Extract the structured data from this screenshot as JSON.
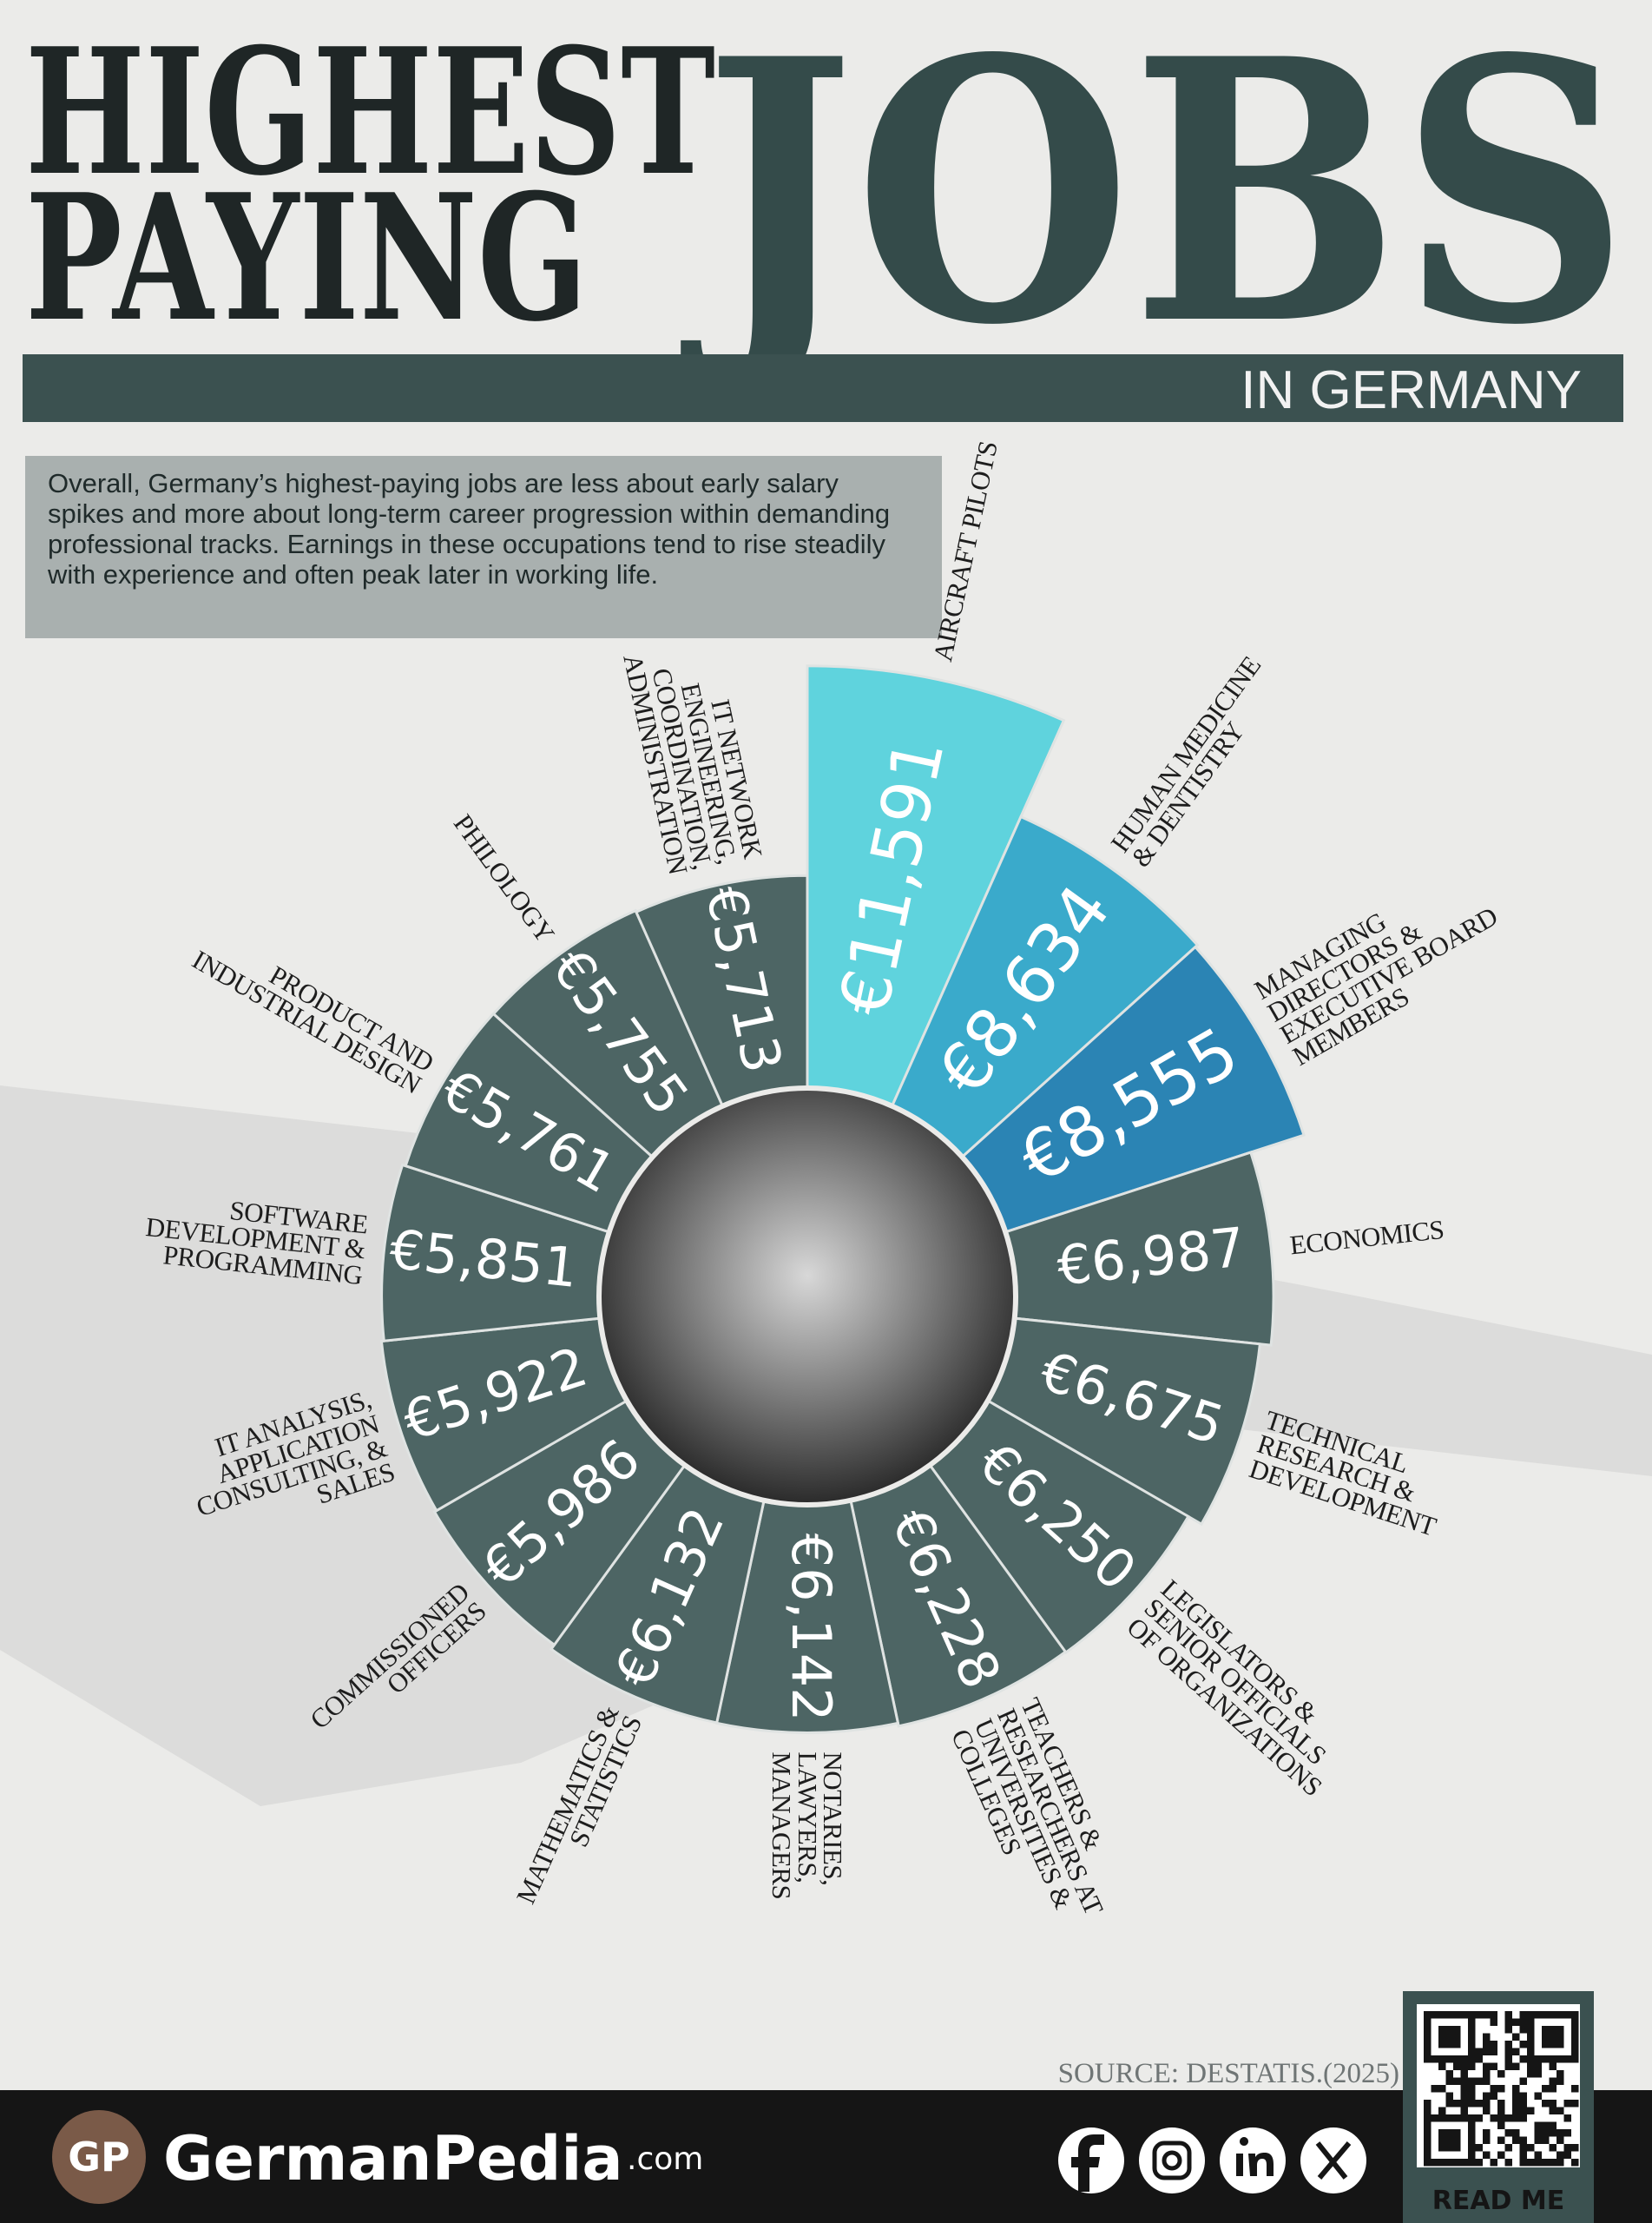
{
  "header": {
    "title_line1": "HIGHEST",
    "title_line2": "PAYING",
    "title_big": "JOBS",
    "subtitle": "IN GERMANY"
  },
  "description": "Overall, Germany’s highest-paying jobs are less about early salary spikes and more about long-term career progression within demanding professional tracks. Earnings in these occupations tend to rise steadily with experience and often peak later in working life.",
  "chart_data": {
    "type": "radial_bar",
    "categories": [
      "AIRCRAFT PILOTS",
      "HUMAN MEDICINE & DENTISTRY",
      "MANAGING DIRECTORS & EXECUTIVE BOARD MEMBERS",
      "ECONOMICS",
      "TECHNICAL RESEARCH & DEVELOPMENT",
      "LEGISLATORS & SENIOR OFFICIALS OF ORGANIZATIONS",
      "TEACHERS & RESEARCHERS AT UNIVERSITIES & COLLEGES",
      "NOTARIES, LAWYERS, MANAGERS",
      "MATHEMATICS & STATISTICS",
      "COMMISSIONED OFFICERS",
      "IT ANALYSIS, APPLICATION CONSULTING, & SALES",
      "SOFTWARE DEVELOPMENT & PROGRAMMING",
      "PRODUCT AND INDUSTRIAL DESIGN",
      "PHILOLOGY",
      "IT NETWORK ENGINEERING, COORDINATION, ADMINISTRATION"
    ],
    "values": [
      11591,
      8634,
      8555,
      6987,
      6675,
      6250,
      6228,
      6142,
      6132,
      5986,
      5922,
      5851,
      5761,
      5755,
      5713
    ],
    "value_labels": [
      "€11,591",
      "€8,634",
      "€8,555",
      "€6,987",
      "€6,675",
      "€6,250",
      "€6,228",
      "€6,142",
      "€6,132",
      "€5,986",
      "€5,922",
      "€5,851",
      "€5,761",
      "€5,755",
      "€5,713"
    ],
    "colors": [
      "#5fd3dd",
      "#3aaacb",
      "#2b84b4",
      "#4d6564",
      "#4d6564",
      "#4d6564",
      "#4d6564",
      "#4d6564",
      "#4d6564",
      "#4d6564",
      "#4d6564",
      "#4d6564",
      "#4d6564",
      "#4d6564",
      "#4d6564"
    ],
    "rlim": [
      0,
      12000
    ]
  },
  "source": "SOURCE: DESTATIS.(2025)",
  "footer": {
    "logo": "GP",
    "brand": "GermanPedia",
    "domain": ".com",
    "qr_label": "READ ME"
  }
}
